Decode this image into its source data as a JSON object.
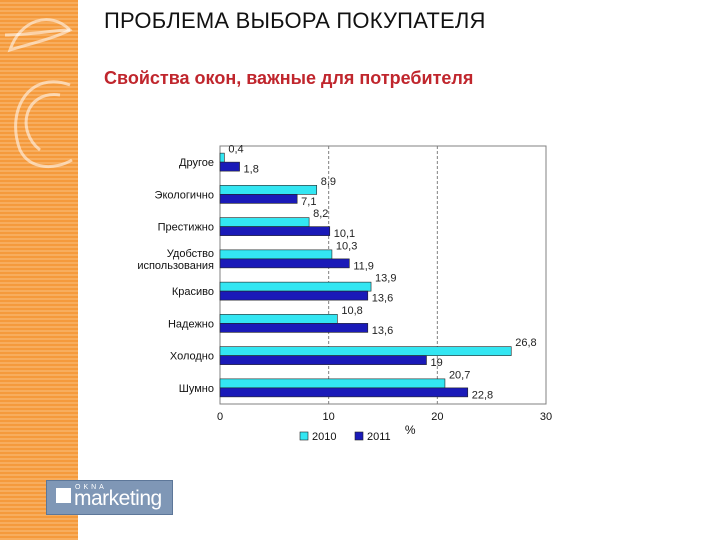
{
  "slide": {
    "title": "ПРОБЛЕМА ВЫБОРА ПОКУПАТЕЛЯ",
    "subtitle": "Свойства окон, важные для потребителя"
  },
  "logo": {
    "top_text": "OKNA",
    "main_text": "marketing"
  },
  "colors": {
    "accent_orange": "#f59a3c",
    "subtitle_red": "#c0262d",
    "series_2010": "#33e6f2",
    "series_2011": "#1a1ab8"
  },
  "chart_data": {
    "type": "bar",
    "orientation": "horizontal",
    "categories": [
      "Другое",
      "Экологично",
      "Престижно",
      "Удобство использования",
      "Красиво",
      "Надежно",
      "Холодно",
      "Шумно"
    ],
    "category_lines": [
      [
        "Другое"
      ],
      [
        "Экологично"
      ],
      [
        "Престижно"
      ],
      [
        "Удобство",
        "использования"
      ],
      [
        "Красиво"
      ],
      [
        "Надежно"
      ],
      [
        "Холодно"
      ],
      [
        "Шумно"
      ]
    ],
    "series": [
      {
        "name": "2010",
        "values": [
          0.4,
          8.9,
          8.2,
          10.3,
          13.9,
          10.8,
          26.8,
          20.7
        ]
      },
      {
        "name": "2011",
        "values": [
          1.8,
          7.1,
          10.1,
          11.9,
          13.6,
          13.6,
          19,
          22.8
        ]
      }
    ],
    "value_labels": [
      [
        "0,4",
        "8,9",
        "8,2",
        "10,3",
        "13,9",
        "10,8",
        "26,8",
        "20,7"
      ],
      [
        "1,8",
        "7,1",
        "10,1",
        "11,9",
        "13,6",
        "13,6",
        "19",
        "22,8"
      ]
    ],
    "x_ticks": [
      "0",
      "10",
      "20",
      "30"
    ],
    "xlim": [
      0,
      30
    ],
    "xlabel": "%",
    "grid": true,
    "legend_position": "bottom"
  }
}
